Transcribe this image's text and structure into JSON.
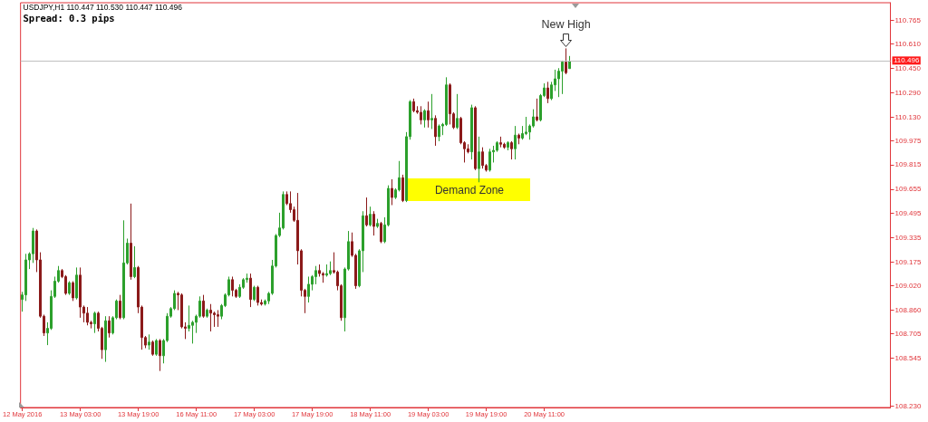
{
  "chart_data": {
    "type": "candlestick",
    "title": "USDJPY,H1 110.447 110.530 110.447 110.496",
    "subtitle": "Spread: 0.3 pips",
    "categories": [
      "12 May 2016",
      null,
      null,
      null,
      null,
      null,
      null,
      null,
      null,
      null,
      null,
      null,
      null,
      null,
      null,
      null,
      "13 May 03:00",
      null,
      null,
      null,
      null,
      null,
      null,
      null,
      null,
      null,
      null,
      null,
      null,
      null,
      null,
      null,
      "13 May 19:00",
      null,
      null,
      null,
      null,
      null,
      null,
      null,
      null,
      null,
      null,
      null,
      null,
      null,
      null,
      null,
      "16 May 11:00",
      null,
      null,
      null,
      null,
      null,
      null,
      null,
      null,
      null,
      null,
      null,
      null,
      null,
      null,
      null,
      "17 May 03:00",
      null,
      null,
      null,
      null,
      null,
      null,
      null,
      null,
      null,
      null,
      null,
      null,
      null,
      null,
      null,
      "17 May 19:00",
      null,
      null,
      null,
      null,
      null,
      null,
      null,
      null,
      null,
      null,
      null,
      null,
      null,
      null,
      null,
      "18 May 11:00",
      null,
      null,
      null,
      null,
      null,
      null,
      null,
      null,
      null,
      null,
      null,
      null,
      null,
      null,
      null,
      "19 May 03:00",
      null,
      null,
      null,
      null,
      null,
      null,
      null,
      null,
      null,
      null,
      null,
      null,
      null,
      null,
      null,
      "19 May 19:00",
      null,
      null,
      null,
      null,
      null,
      null,
      null,
      null,
      null,
      null,
      null,
      null,
      null,
      null,
      null,
      "20 May 11:00",
      null,
      null,
      null,
      null,
      null,
      null,
      null,
      null,
      null,
      null,
      null,
      null,
      null,
      null,
      null,
      null,
      null,
      null,
      null,
      null,
      null,
      null,
      null,
      null,
      null,
      null,
      null,
      null,
      null,
      null,
      null,
      null,
      null,
      null,
      null,
      null,
      null,
      null,
      null,
      null,
      null,
      null,
      null,
      null,
      null,
      null,
      null,
      null,
      null,
      null,
      null,
      null,
      null,
      null,
      null,
      null,
      null,
      null,
      null,
      null,
      null,
      null,
      null,
      null,
      null,
      null,
      null,
      null,
      null,
      null,
      null,
      null,
      null,
      null,
      null,
      null,
      null,
      null,
      null,
      null,
      null,
      null,
      null,
      null,
      null,
      null,
      null,
      null,
      null,
      null,
      null,
      null,
      null,
      null,
      null
    ],
    "ohlc": [
      [
        108.93,
        108.98,
        108.85,
        108.96
      ],
      [
        108.96,
        109.23,
        108.92,
        109.19
      ],
      [
        109.19,
        109.24,
        109.13,
        109.23
      ],
      [
        109.23,
        109.4,
        109.17,
        109.38
      ],
      [
        109.38,
        109.39,
        109.11,
        109.19
      ],
      [
        109.19,
        109.24,
        108.81,
        108.82
      ],
      [
        108.82,
        108.83,
        108.69,
        108.71
      ],
      [
        108.71,
        108.78,
        108.63,
        108.74
      ],
      [
        108.74,
        108.99,
        108.73,
        108.95
      ],
      [
        108.95,
        109.08,
        108.94,
        109.05
      ],
      [
        109.05,
        109.15,
        109.04,
        109.12
      ],
      [
        109.12,
        109.13,
        109.07,
        109.08
      ],
      [
        109.08,
        109.09,
        108.96,
        108.97
      ],
      [
        108.97,
        109.05,
        108.96,
        109.04
      ],
      [
        109.04,
        109.05,
        108.92,
        108.94
      ],
      [
        108.94,
        109.14,
        108.93,
        109.09
      ],
      [
        109.09,
        109.14,
        108.81,
        108.88
      ],
      [
        108.88,
        108.89,
        108.78,
        108.84
      ],
      [
        108.84,
        108.88,
        108.76,
        108.78
      ],
      [
        108.78,
        108.79,
        108.74,
        108.77
      ],
      [
        108.77,
        108.85,
        108.71,
        108.84
      ],
      [
        108.84,
        108.85,
        108.72,
        108.74
      ],
      [
        108.74,
        108.75,
        108.54,
        108.6
      ],
      [
        108.6,
        108.82,
        108.52,
        108.79
      ],
      [
        108.79,
        108.82,
        108.68,
        108.71
      ],
      [
        108.71,
        108.82,
        108.7,
        108.81
      ],
      [
        108.81,
        108.93,
        108.8,
        108.92
      ],
      [
        108.92,
        108.96,
        108.8,
        108.81
      ],
      [
        108.81,
        109.45,
        108.8,
        109.17
      ],
      [
        109.17,
        109.33,
        109.16,
        109.3
      ],
      [
        109.3,
        109.56,
        109.06,
        109.08
      ],
      [
        109.08,
        109.28,
        109.07,
        109.14
      ],
      [
        109.14,
        109.15,
        108.84,
        108.88
      ],
      [
        108.88,
        108.89,
        108.6,
        108.68
      ],
      [
        108.68,
        108.69,
        108.61,
        108.63
      ],
      [
        108.63,
        108.7,
        108.6,
        108.65
      ],
      [
        108.65,
        108.66,
        108.56,
        108.57
      ],
      [
        108.57,
        108.67,
        108.56,
        108.66
      ],
      [
        108.66,
        108.67,
        108.46,
        108.56
      ],
      [
        108.56,
        108.67,
        108.51,
        108.66
      ],
      [
        108.66,
        108.84,
        108.65,
        108.82
      ],
      [
        108.82,
        108.88,
        108.81,
        108.87
      ],
      [
        108.87,
        108.99,
        108.86,
        108.97
      ],
      [
        108.97,
        108.98,
        108.86,
        108.96
      ],
      [
        108.96,
        108.97,
        108.74,
        108.75
      ],
      [
        108.75,
        108.78,
        108.67,
        108.74
      ],
      [
        108.74,
        108.89,
        108.72,
        108.76
      ],
      [
        108.76,
        108.79,
        108.64,
        108.78
      ],
      [
        108.78,
        108.83,
        108.71,
        108.82
      ],
      [
        108.82,
        108.95,
        108.81,
        108.92
      ],
      [
        108.92,
        108.96,
        108.81,
        108.82
      ],
      [
        108.82,
        108.87,
        108.81,
        108.86
      ],
      [
        108.86,
        108.9,
        108.72,
        108.84
      ],
      [
        108.84,
        108.85,
        108.75,
        108.83
      ],
      [
        108.83,
        108.86,
        108.75,
        108.82
      ],
      [
        108.82,
        108.9,
        108.8,
        108.89
      ],
      [
        108.89,
        108.97,
        108.88,
        108.96
      ],
      [
        108.96,
        109.08,
        108.95,
        109.06
      ],
      [
        109.06,
        109.08,
        108.95,
        108.99
      ],
      [
        108.99,
        109.0,
        108.94,
        108.95
      ],
      [
        108.95,
        109.03,
        108.94,
        109.01
      ],
      [
        109.01,
        109.07,
        109.0,
        109.06
      ],
      [
        109.06,
        109.1,
        109.04,
        109.07
      ],
      [
        109.07,
        109.1,
        108.88,
        108.93
      ],
      [
        108.93,
        109.02,
        108.92,
        109.01
      ],
      [
        109.01,
        109.02,
        108.89,
        108.91
      ],
      [
        108.91,
        108.93,
        108.89,
        108.9
      ],
      [
        108.9,
        108.93,
        108.89,
        108.92
      ],
      [
        108.92,
        108.98,
        108.9,
        108.97
      ],
      [
        108.97,
        109.19,
        108.96,
        109.15
      ],
      [
        109.15,
        109.36,
        109.14,
        109.35
      ],
      [
        109.35,
        109.5,
        109.34,
        109.4
      ],
      [
        109.4,
        109.64,
        109.39,
        109.62
      ],
      [
        109.62,
        109.64,
        109.55,
        109.56
      ],
      [
        109.56,
        109.64,
        109.5,
        109.52
      ],
      [
        109.52,
        109.54,
        109.44,
        109.45
      ],
      [
        109.45,
        109.63,
        109.16,
        109.25
      ],
      [
        109.25,
        109.26,
        108.95,
        108.99
      ],
      [
        108.99,
        109.0,
        108.84,
        108.95
      ],
      [
        108.95,
        109.08,
        108.91,
        109.03
      ],
      [
        109.03,
        109.09,
        108.99,
        109.08
      ],
      [
        109.08,
        109.15,
        109.03,
        109.12
      ],
      [
        109.12,
        109.16,
        109.08,
        109.1
      ],
      [
        109.1,
        109.11,
        109.04,
        109.09
      ],
      [
        109.09,
        109.16,
        109.08,
        109.1
      ],
      [
        109.1,
        109.18,
        109.09,
        109.12
      ],
      [
        109.12,
        109.24,
        109.1,
        109.11
      ],
      [
        109.11,
        109.12,
        108.99,
        109.02
      ],
      [
        109.02,
        109.03,
        108.79,
        108.81
      ],
      [
        108.81,
        109.14,
        108.72,
        109.13
      ],
      [
        109.13,
        109.38,
        109.12,
        109.31
      ],
      [
        109.31,
        109.37,
        109.21,
        109.22
      ],
      [
        109.22,
        109.23,
        109.0,
        109.02
      ],
      [
        109.02,
        109.26,
        109.01,
        109.25
      ],
      [
        109.25,
        109.51,
        109.11,
        109.48
      ],
      [
        109.48,
        109.6,
        109.41,
        109.42
      ],
      [
        109.42,
        109.54,
        109.41,
        109.49
      ],
      [
        109.49,
        109.51,
        109.35,
        109.41
      ],
      [
        109.41,
        109.46,
        109.4,
        109.43
      ],
      [
        109.43,
        109.44,
        109.3,
        109.31
      ],
      [
        109.31,
        109.47,
        109.3,
        109.42
      ],
      [
        109.42,
        109.68,
        109.41,
        109.66
      ],
      [
        109.66,
        109.72,
        109.55,
        109.6
      ],
      [
        109.6,
        109.66,
        109.59,
        109.65
      ],
      [
        109.65,
        109.84,
        109.64,
        109.73
      ],
      [
        109.73,
        109.75,
        109.57,
        109.58
      ],
      [
        109.58,
        110.03,
        109.57,
        110.0
      ],
      [
        110.0,
        110.24,
        109.98,
        110.23
      ],
      [
        110.23,
        110.25,
        110.16,
        110.17
      ],
      [
        110.17,
        110.2,
        110.15,
        110.16
      ],
      [
        110.16,
        110.2,
        110.08,
        110.11
      ],
      [
        110.11,
        110.18,
        110.06,
        110.17
      ],
      [
        110.17,
        110.23,
        110.06,
        110.11
      ],
      [
        110.11,
        110.28,
        110.05,
        110.12
      ],
      [
        110.12,
        110.14,
        109.94,
        110.0
      ],
      [
        110.0,
        110.08,
        109.97,
        110.07
      ],
      [
        110.07,
        110.09,
        110.01,
        110.08
      ],
      [
        110.08,
        110.39,
        110.07,
        110.34
      ],
      [
        110.34,
        110.35,
        110.08,
        110.15
      ],
      [
        110.15,
        110.16,
        110.05,
        110.06
      ],
      [
        110.06,
        110.28,
        110.05,
        110.12
      ],
      [
        110.12,
        110.13,
        109.95,
        109.96
      ],
      [
        109.96,
        109.97,
        109.83,
        109.92
      ],
      [
        109.92,
        109.95,
        109.89,
        109.9
      ],
      [
        109.9,
        110.21,
        109.85,
        110.19
      ],
      [
        110.19,
        110.2,
        109.78,
        109.79
      ],
      [
        109.79,
        110.0,
        109.7,
        109.9
      ],
      [
        109.9,
        109.93,
        109.79,
        109.81
      ],
      [
        109.81,
        109.82,
        109.77,
        109.78
      ],
      [
        109.78,
        109.92,
        109.77,
        109.9
      ],
      [
        109.9,
        109.94,
        109.83,
        109.91
      ],
      [
        109.91,
        109.97,
        109.9,
        109.96
      ],
      [
        109.96,
        110.0,
        109.93,
        109.95
      ],
      [
        109.95,
        109.96,
        109.92,
        109.93
      ],
      [
        109.93,
        109.97,
        109.91,
        109.96
      ],
      [
        109.96,
        109.97,
        109.85,
        109.92
      ],
      [
        109.92,
        110.07,
        109.85,
        110.01
      ],
      [
        110.01,
        110.02,
        109.95,
        109.99
      ],
      [
        109.99,
        110.07,
        109.98,
        110.02
      ],
      [
        110.02,
        110.13,
        110.01,
        110.03
      ],
      [
        110.03,
        110.08,
        109.98,
        110.07
      ],
      [
        110.07,
        110.18,
        110.06,
        110.13
      ],
      [
        110.13,
        110.25,
        110.1,
        110.11
      ],
      [
        110.11,
        110.28,
        110.1,
        110.27
      ],
      [
        110.27,
        110.35,
        110.26,
        110.32
      ],
      [
        110.32,
        110.36,
        110.22,
        110.25
      ],
      [
        110.25,
        110.36,
        110.24,
        110.34
      ],
      [
        110.34,
        110.44,
        110.3,
        110.38
      ],
      [
        110.38,
        110.45,
        110.26,
        110.43
      ],
      [
        110.43,
        110.5,
        110.28,
        110.49
      ],
      [
        110.49,
        110.58,
        110.41,
        110.42
      ],
      [
        110.447,
        110.53,
        110.447,
        110.496
      ],
      null,
      null,
      null,
      null,
      null,
      null,
      null,
      null,
      null,
      null,
      null,
      null,
      null,
      null,
      null,
      null,
      null,
      null,
      null,
      null,
      null,
      null,
      null,
      null,
      null,
      null,
      null,
      null,
      null,
      null,
      null,
      null,
      null,
      null,
      null,
      null,
      null,
      null,
      null,
      null,
      null,
      null,
      null,
      null,
      null,
      null,
      null,
      null,
      null,
      null,
      null,
      null,
      null,
      null,
      null,
      null,
      null,
      null,
      null,
      null,
      null,
      null,
      null,
      null,
      null,
      null,
      null,
      null,
      null,
      null,
      null,
      null,
      null,
      null,
      null,
      null,
      null,
      null,
      null,
      null,
      null,
      null,
      null,
      null,
      null,
      null,
      null,
      null
    ],
    "colors": [
      "#2ca02c",
      "#2ca02c",
      "#2ca02c",
      "#2ca02c",
      "#8b1a1a",
      "#8b1a1a",
      "#8b1a1a",
      "#2ca02c",
      "#2ca02c",
      "#2ca02c",
      "#2ca02c",
      "#8b1a1a",
      "#8b1a1a",
      "#2ca02c",
      "#8b1a1a",
      "#2ca02c",
      "#8b1a1a",
      "#8b1a1a",
      "#8b1a1a",
      "#8b1a1a",
      "#2ca02c",
      "#8b1a1a",
      "#8b1a1a",
      "#2ca02c",
      "#8b1a1a",
      "#2ca02c",
      "#2ca02c",
      "#8b1a1a",
      "#2ca02c",
      "#2ca02c",
      "#8b1a1a",
      "#2ca02c",
      "#8b1a1a",
      "#8b1a1a",
      "#8b1a1a",
      "#2ca02c",
      "#8b1a1a",
      "#2ca02c",
      "#8b1a1a",
      "#2ca02c",
      "#2ca02c",
      "#2ca02c",
      "#2ca02c",
      "#8b1a1a",
      "#8b1a1a",
      "#8b1a1a",
      "#2ca02c",
      "#2ca02c",
      "#2ca02c",
      "#2ca02c",
      "#8b1a1a",
      "#2ca02c",
      "#8b1a1a",
      "#8b1a1a",
      "#8b1a1a",
      "#2ca02c",
      "#2ca02c",
      "#2ca02c",
      "#8b1a1a",
      "#8b1a1a",
      "#2ca02c",
      "#2ca02c",
      "#2ca02c",
      "#8b1a1a",
      "#2ca02c",
      "#8b1a1a",
      "#8b1a1a",
      "#2ca02c",
      "#2ca02c",
      "#2ca02c",
      "#2ca02c",
      "#2ca02c",
      "#2ca02c",
      "#8b1a1a",
      "#8b1a1a",
      "#8b1a1a",
      "#8b1a1a",
      "#8b1a1a",
      "#8b1a1a",
      "#2ca02c",
      "#2ca02c",
      "#2ca02c",
      "#8b1a1a",
      "#8b1a1a",
      "#2ca02c",
      "#2ca02c",
      "#8b1a1a",
      "#8b1a1a",
      "#8b1a1a",
      "#2ca02c",
      "#2ca02c",
      "#8b1a1a",
      "#8b1a1a",
      "#2ca02c",
      "#2ca02c",
      "#8b1a1a",
      "#2ca02c",
      "#8b1a1a",
      "#2ca02c",
      "#8b1a1a",
      "#2ca02c",
      "#2ca02c",
      "#8b1a1a",
      "#2ca02c",
      "#2ca02c",
      "#8b1a1a",
      "#2ca02c",
      "#2ca02c",
      "#8b1a1a",
      "#8b1a1a",
      "#8b1a1a",
      "#2ca02c",
      "#8b1a1a",
      "#2ca02c",
      "#8b1a1a",
      "#2ca02c",
      "#2ca02c",
      "#2ca02c",
      "#8b1a1a",
      "#8b1a1a",
      "#2ca02c",
      "#8b1a1a",
      "#8b1a1a",
      "#8b1a1a",
      "#2ca02c",
      "#8b1a1a",
      "#2ca02c",
      "#8b1a1a",
      "#8b1a1a",
      "#2ca02c",
      "#2ca02c",
      "#2ca02c",
      "#8b1a1a",
      "#8b1a1a",
      "#2ca02c",
      "#8b1a1a",
      "#2ca02c",
      "#8b1a1a",
      "#2ca02c",
      "#2ca02c",
      "#2ca02c",
      "#2ca02c",
      "#8b1a1a",
      "#2ca02c",
      "#2ca02c",
      "#8b1a1a",
      "#2ca02c",
      "#2ca02c",
      "#2ca02c",
      "#2ca02c",
      "#8b1a1a",
      "#2ca02c",
      null,
      null,
      null,
      null,
      null,
      null,
      null,
      null,
      null,
      null,
      null,
      null,
      null,
      null,
      null,
      null,
      null,
      null,
      null,
      null,
      null,
      null,
      null,
      null,
      null,
      null,
      null,
      null,
      null,
      null,
      null,
      null,
      null,
      null,
      null,
      null,
      null,
      null,
      null,
      null,
      null,
      null,
      null,
      null,
      null,
      null,
      null,
      null,
      null,
      null,
      null,
      null,
      null,
      null,
      null,
      null,
      null,
      null,
      null,
      null,
      null,
      null,
      null,
      null,
      null,
      null,
      null,
      null,
      null,
      null,
      null,
      null,
      null,
      null,
      null,
      null,
      null,
      null,
      null,
      null,
      null,
      null,
      null,
      null,
      null,
      null,
      null,
      null
    ],
    "ylim": [
      108.22,
      110.88
    ],
    "yticks": [
      {
        "value": 110.765,
        "label": "110.765"
      },
      {
        "value": 110.61,
        "label": "110.610"
      },
      {
        "value": 110.45,
        "label": "110.450"
      },
      {
        "value": 110.29,
        "label": "110.290"
      },
      {
        "value": 110.13,
        "label": "110.130"
      },
      {
        "value": 109.975,
        "label": "109.975"
      },
      {
        "value": 109.815,
        "label": "109.815"
      },
      {
        "value": 109.655,
        "label": "109.655"
      },
      {
        "value": 109.495,
        "label": "109.495"
      },
      {
        "value": 109.335,
        "label": "109.335"
      },
      {
        "value": 109.175,
        "label": "109.175"
      },
      {
        "value": 109.02,
        "label": "109.020"
      },
      {
        "value": 108.86,
        "label": "108.860"
      },
      {
        "value": 108.705,
        "label": "108.705"
      },
      {
        "value": 108.545,
        "label": "108.545"
      },
      {
        "value": 108.23,
        "label": "108.230"
      }
    ],
    "ref_lines": [
      {
        "axis": "y",
        "value": 110.496,
        "label": "110.496",
        "color": "#c0c0c0"
      }
    ],
    "annotations": [
      "New High",
      "Demand Zone"
    ],
    "grid": false
  }
}
